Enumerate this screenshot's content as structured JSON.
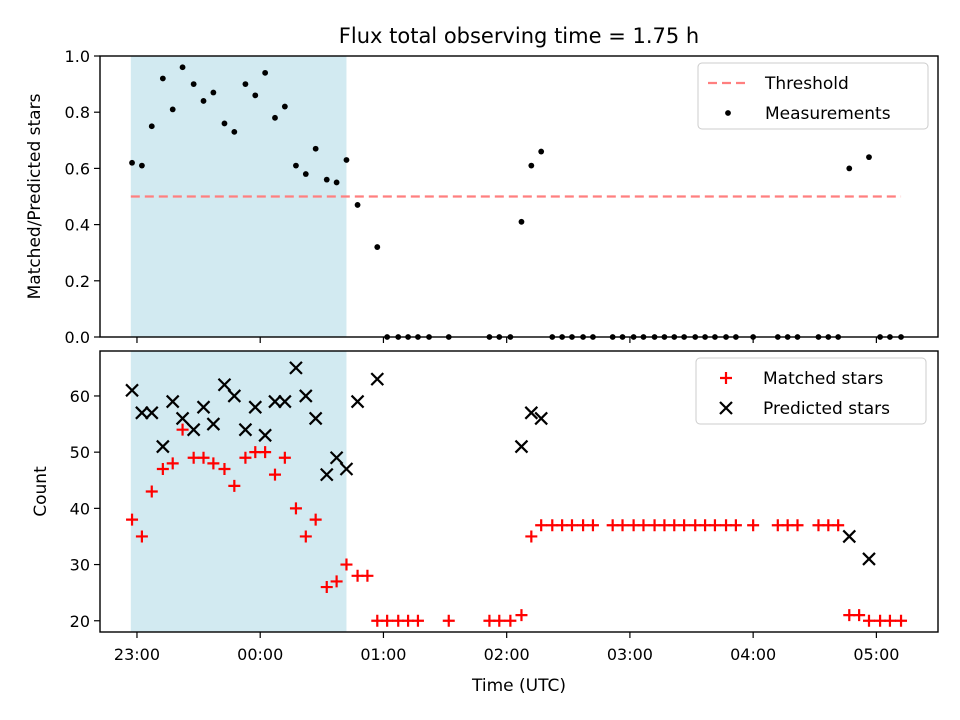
{
  "chart_data": {
    "type": "scatter",
    "title": "Flux total observing time = 1.75 h",
    "xlabel": "Time (UTC)",
    "x_unit": "hours since 22:00 UTC",
    "xlim": [
      22.7,
      29.5
    ],
    "x_ticks": [
      {
        "value": 23,
        "label": "23:00"
      },
      {
        "value": 24,
        "label": "00:00"
      },
      {
        "value": 25,
        "label": "01:00"
      },
      {
        "value": 26,
        "label": "02:00"
      },
      {
        "value": 27,
        "label": "03:00"
      },
      {
        "value": 28,
        "label": "04:00"
      },
      {
        "value": 29,
        "label": "05:00"
      }
    ],
    "shaded_interval": {
      "start": 22.95,
      "end": 24.7,
      "color": "#add8e6"
    },
    "panels": [
      {
        "name": "ratio",
        "ylabel": "Matched/Predicted stars",
        "ylim": [
          0,
          1.0
        ],
        "y_ticks": [
          "0.0",
          "0.2",
          "0.4",
          "0.6",
          "0.8",
          "1.0"
        ],
        "threshold": {
          "label": "Threshold",
          "value": 0.5,
          "x_start": 22.95,
          "x_end": 29.2,
          "color": "#ff7f7f"
        },
        "legend": [
          "Threshold",
          "Measurements"
        ],
        "series": [
          {
            "name": "Measurements",
            "marker": "dot",
            "color": "#000000",
            "x": [
              22.96,
              23.04,
              23.12,
              23.21,
              23.29,
              23.37,
              23.46,
              23.54,
              23.62,
              23.71,
              23.79,
              23.88,
              23.96,
              24.04,
              24.12,
              24.2,
              24.29,
              24.37,
              24.45,
              24.54,
              24.62,
              24.7,
              24.79,
              24.95,
              25.03,
              25.12,
              25.2,
              25.28,
              25.37,
              25.53,
              25.86,
              25.94,
              26.03,
              26.12,
              26.2,
              26.28,
              26.37,
              26.45,
              26.53,
              26.62,
              26.7,
              26.86,
              26.94,
              27.03,
              27.11,
              27.2,
              27.28,
              27.36,
              27.44,
              27.53,
              27.61,
              27.69,
              27.78,
              27.86,
              28.0,
              28.2,
              28.28,
              28.36,
              28.53,
              28.61,
              28.69,
              28.78,
              28.94,
              29.03,
              29.11,
              29.2
            ],
            "y": [
              0.62,
              0.61,
              0.75,
              0.92,
              0.81,
              0.96,
              0.9,
              0.84,
              0.87,
              0.76,
              0.73,
              0.9,
              0.86,
              0.94,
              0.78,
              0.82,
              0.61,
              0.58,
              0.67,
              0.56,
              0.55,
              0.63,
              0.47,
              0.32,
              0.0,
              0.0,
              0.0,
              0.0,
              0.0,
              0.0,
              0.0,
              0.0,
              0.0,
              0.41,
              0.61,
              0.66,
              0.0,
              0.0,
              0.0,
              0.0,
              0.0,
              0.0,
              0.0,
              0.0,
              0.0,
              0.0,
              0.0,
              0.0,
              0.0,
              0.0,
              0.0,
              0.0,
              0.0,
              0.0,
              0.0,
              0.0,
              0.0,
              0.0,
              0.0,
              0.0,
              0.0,
              0.6,
              0.64,
              0.0,
              0.0,
              0.0
            ]
          }
        ]
      },
      {
        "name": "count",
        "ylabel": "Count",
        "ylim": [
          18,
          68
        ],
        "y_ticks": [
          "20",
          "30",
          "40",
          "50",
          "60"
        ],
        "legend": [
          "Matched stars",
          "Predicted stars"
        ],
        "series": [
          {
            "name": "Matched stars",
            "marker": "plus",
            "color": "#ff0000",
            "x": [
              22.96,
              23.04,
              23.12,
              23.21,
              23.29,
              23.37,
              23.46,
              23.54,
              23.62,
              23.71,
              23.79,
              23.88,
              23.96,
              24.04,
              24.12,
              24.2,
              24.29,
              24.37,
              24.45,
              24.54,
              24.62,
              24.7,
              24.79,
              24.87,
              24.95,
              25.03,
              25.12,
              25.2,
              25.28,
              25.53,
              25.86,
              25.94,
              26.03,
              26.12,
              26.2,
              26.28,
              26.37,
              26.45,
              26.53,
              26.62,
              26.7,
              26.86,
              26.94,
              27.03,
              27.11,
              27.2,
              27.28,
              27.36,
              27.44,
              27.53,
              27.61,
              27.69,
              27.78,
              27.86,
              28.0,
              28.2,
              28.28,
              28.36,
              28.53,
              28.61,
              28.69,
              28.78,
              28.86,
              28.94,
              29.03,
              29.11,
              29.2
            ],
            "y": [
              38,
              35,
              43,
              47,
              48,
              54,
              49,
              49,
              48,
              47,
              44,
              49,
              50,
              50,
              46,
              49,
              40,
              35,
              38,
              26,
              27,
              30,
              28,
              28,
              20,
              20,
              20,
              20,
              20,
              20,
              20,
              20,
              20,
              21,
              35,
              37,
              37,
              37,
              37,
              37,
              37,
              37,
              37,
              37,
              37,
              37,
              37,
              37,
              37,
              37,
              37,
              37,
              37,
              37,
              37,
              37,
              37,
              37,
              37,
              37,
              37,
              21,
              21,
              20,
              20,
              20,
              20
            ]
          },
          {
            "name": "Predicted stars",
            "marker": "x",
            "color": "#000000",
            "x": [
              22.96,
              23.04,
              23.12,
              23.21,
              23.29,
              23.37,
              23.46,
              23.54,
              23.62,
              23.71,
              23.79,
              23.88,
              23.96,
              24.04,
              24.12,
              24.2,
              24.29,
              24.37,
              24.45,
              24.54,
              24.62,
              24.7,
              24.79,
              24.95,
              26.12,
              26.2,
              26.28,
              28.78,
              28.94
            ],
            "y": [
              61,
              57,
              57,
              51,
              59,
              56,
              54,
              58,
              55,
              62,
              60,
              54,
              58,
              53,
              59,
              59,
              65,
              60,
              56,
              46,
              49,
              47,
              59,
              63,
              51,
              57,
              56,
              35,
              31
            ]
          }
        ]
      }
    ]
  }
}
